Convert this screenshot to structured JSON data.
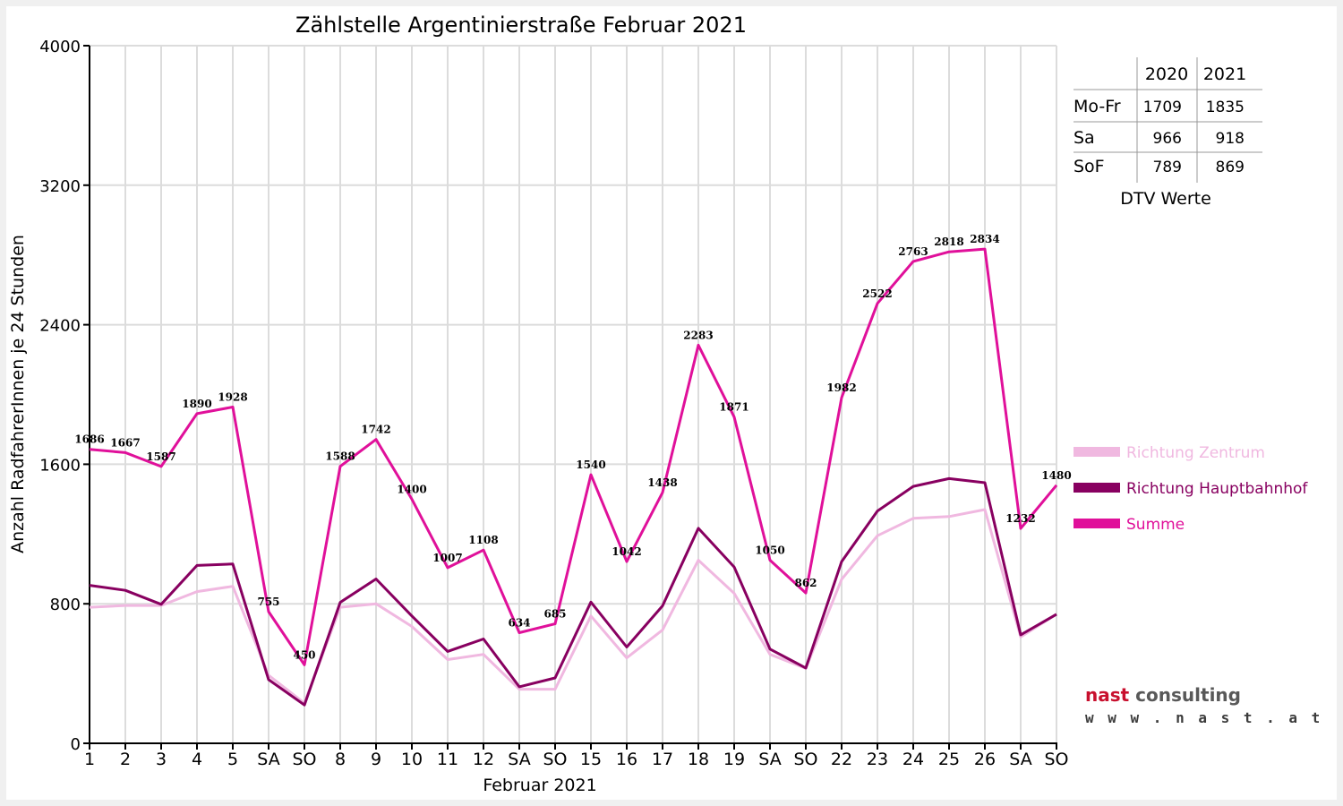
{
  "chart_data": {
    "type": "line",
    "title": "Zählstelle Argentinierstraße Februar 2021",
    "xlabel": "Februar 2021",
    "ylabel": "Anzahl RadfahrerInnen je 24 Stunden",
    "ylim": [
      0,
      4000
    ],
    "yticks": [
      0,
      800,
      1600,
      2400,
      3200,
      4000
    ],
    "grid": true,
    "categories": [
      "1",
      "2",
      "3",
      "4",
      "5",
      "SA",
      "SO",
      "8",
      "9",
      "10",
      "11",
      "12",
      "SA",
      "SO",
      "15",
      "16",
      "17",
      "18",
      "19",
      "SA",
      "SO",
      "22",
      "23",
      "24",
      "25",
      "26",
      "SA",
      "SO"
    ],
    "weekend_label_colors": {
      "SA": "#000000",
      "SO": "#ff0000"
    },
    "series": [
      {
        "name": "Richtung Zentrum",
        "color": "#f0b8e0",
        "values": [
          780,
          790,
          790,
          870,
          900,
          390,
          230,
          780,
          800,
          670,
          480,
          510,
          310,
          310,
          730,
          490,
          650,
          1050,
          860,
          510,
          430,
          940,
          1190,
          1290,
          1300,
          1340,
          610,
          740
        ]
      },
      {
        "name": "Richtung Hauptbahnhof",
        "color": "#880060",
        "values": [
          906,
          877,
          797,
          1020,
          1028,
          365,
          220,
          808,
          942,
          730,
          527,
          598,
          324,
          375,
          810,
          552,
          788,
          1233,
          1011,
          540,
          432,
          1042,
          1332,
          1473,
          1518,
          1494,
          622,
          740
        ]
      },
      {
        "name": "Summe",
        "color": "#e0109a",
        "values": [
          1686,
          1667,
          1587,
          1890,
          1928,
          755,
          450,
          1588,
          1742,
          1400,
          1007,
          1108,
          634,
          685,
          1540,
          1042,
          1438,
          2283,
          1871,
          1050,
          862,
          1982,
          2522,
          2763,
          2818,
          2834,
          1232,
          1480
        ],
        "data_labels": [
          "1686",
          "1667",
          "1587",
          "1890",
          "1928",
          "755",
          "450",
          "1588",
          "1742",
          "1400",
          "1007",
          "1108",
          "634",
          "685",
          "1540",
          "1042",
          "1438",
          "2283",
          "1871",
          "1050",
          "862",
          "1982",
          "2522",
          "2763",
          "2818",
          "2834",
          "1232",
          "1480"
        ]
      }
    ],
    "legend_position": "right",
    "dtv_table": {
      "caption": "DTV Werte",
      "columns": [
        "2020",
        "2021"
      ],
      "rows": [
        {
          "label": "Mo-Fr",
          "v2020": "1709",
          "v2021": "1835"
        },
        {
          "label": "Sa",
          "v2020": "966",
          "v2021": "918"
        },
        {
          "label": "SoF",
          "v2020": "789",
          "v2021": "869"
        }
      ]
    }
  },
  "logo": {
    "brand_part1": "nast",
    "brand_part2": "consulting",
    "url": "w w w . n a s t . a t"
  }
}
